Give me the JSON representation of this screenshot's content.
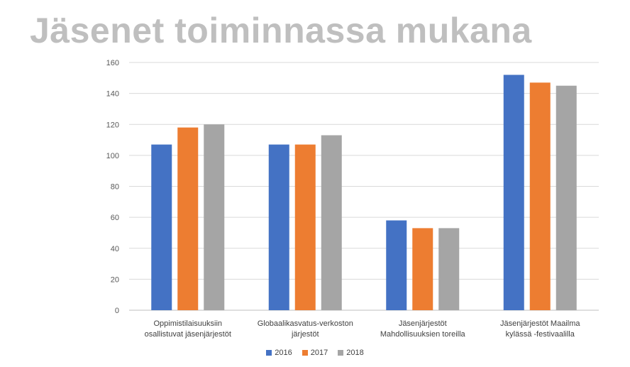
{
  "title": "Jäsenet toiminnassa mukana",
  "chart_data": {
    "type": "bar",
    "categories": [
      [
        "Oppimistilaisuuksiin",
        "osallistuvat jäsenjärjestöt"
      ],
      [
        "Globaalikasvatus-verkoston",
        "järjestöt"
      ],
      [
        "Jäsenjärjestöt",
        "Mahdollisuuksien toreilla"
      ],
      [
        "Jäsenjärjestöt Maailma",
        "kylässä -festivaalilla"
      ]
    ],
    "series": [
      {
        "name": "2016",
        "color": "#4472c4",
        "values": [
          107,
          107,
          58,
          152
        ]
      },
      {
        "name": "2017",
        "color": "#ed7d31",
        "values": [
          118,
          107,
          53,
          147
        ]
      },
      {
        "name": "2018",
        "color": "#a5a5a5",
        "values": [
          120,
          113,
          53,
          145
        ]
      }
    ],
    "ylim": [
      0,
      160
    ],
    "yticks": [
      0,
      20,
      40,
      60,
      80,
      100,
      120,
      140,
      160
    ],
    "grid": true,
    "legend_position": "bottom"
  }
}
